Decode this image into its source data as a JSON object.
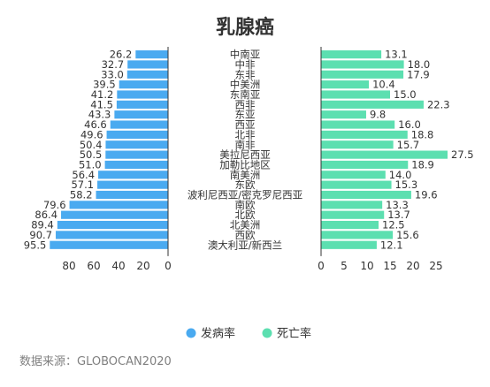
{
  "chart_data": {
    "type": "bar",
    "title": "乳腺癌",
    "categories": [
      "中南亚",
      "中非",
      "东非",
      "中美洲",
      "东南亚",
      "西非",
      "东亚",
      "西亚",
      "北非",
      "南非",
      "美拉尼西亚",
      "加勒比地区",
      "南美洲",
      "东欧",
      "波利尼西亚/密克罗尼西亚",
      "南欧",
      "北欧",
      "北美洲",
      "西欧",
      "澳大利亚/新西兰"
    ],
    "series": [
      {
        "name": "发病率",
        "values": [
          26.2,
          32.7,
          33.0,
          39.5,
          41.2,
          41.5,
          43.3,
          46.6,
          49.6,
          50.4,
          50.5,
          51.0,
          56.4,
          57.1,
          58.2,
          79.6,
          86.4,
          89.4,
          90.7,
          95.5
        ],
        "color": "#4aaaf0"
      },
      {
        "name": "死亡率",
        "values": [
          13.1,
          18.0,
          17.9,
          10.4,
          15.0,
          22.3,
          9.8,
          16.0,
          18.8,
          15.7,
          27.5,
          18.9,
          14.0,
          15.3,
          19.6,
          13.3,
          13.7,
          12.5,
          15.6,
          12.1
        ],
        "color": "#5cdfb0"
      }
    ],
    "left_axis": {
      "range": [
        0,
        100
      ],
      "ticks": [
        "80",
        "60",
        "40",
        "20",
        "0"
      ],
      "reversed": true
    },
    "right_axis": {
      "range": [
        0,
        28
      ],
      "ticks": [
        "0",
        "5",
        "10",
        "15",
        "20",
        "25"
      ]
    },
    "legend": {
      "placement": "bottom-center",
      "items": [
        "发病率",
        "死亡率"
      ]
    }
  },
  "source": "数据来源：GLOBOCAN2020"
}
